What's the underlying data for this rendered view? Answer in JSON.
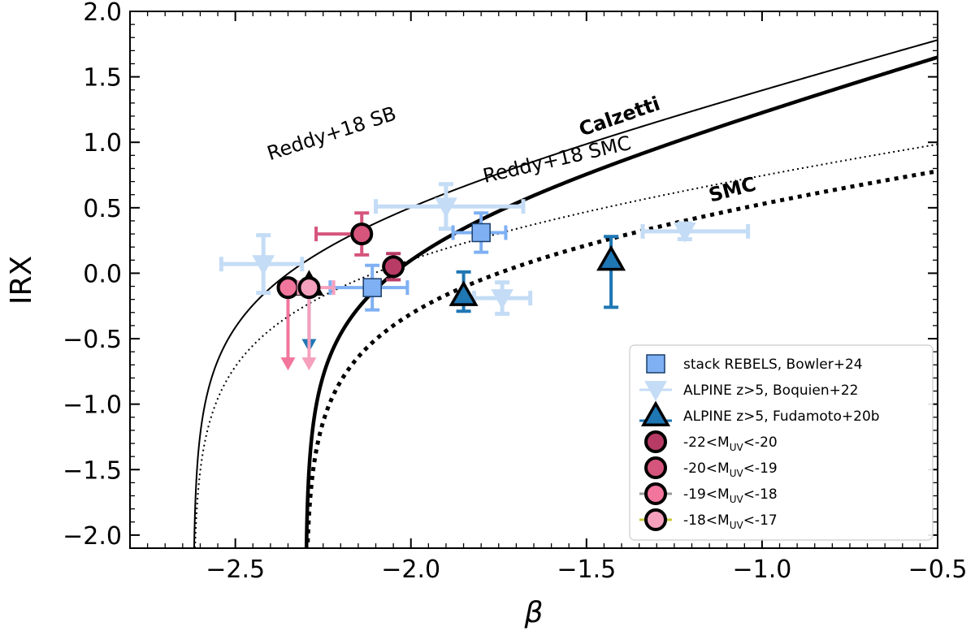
{
  "chart_data": {
    "type": "scatter",
    "xlabel": "β",
    "ylabel": "IRX",
    "xlim": [
      -2.8,
      -0.5
    ],
    "ylim": [
      -2.1,
      2.0
    ],
    "xticks": [
      {
        "value": -2.5,
        "label": "−2.5"
      },
      {
        "value": -2.0,
        "label": "−2.0"
      },
      {
        "value": -1.5,
        "label": "−1.5"
      },
      {
        "value": -1.0,
        "label": "−1.0"
      },
      {
        "value": -0.5,
        "label": "−0.5"
      }
    ],
    "yticks": [
      {
        "value": 2.0,
        "label": "2.0"
      },
      {
        "value": 1.5,
        "label": "1.5"
      },
      {
        "value": 1.0,
        "label": "1.0"
      },
      {
        "value": 0.5,
        "label": "0.5"
      },
      {
        "value": 0.0,
        "label": "0.0"
      },
      {
        "value": -0.5,
        "label": "−0.5"
      },
      {
        "value": -1.0,
        "label": "−1.0"
      },
      {
        "value": -1.5,
        "label": "−1.5"
      },
      {
        "value": -2.0,
        "label": "−2.0"
      }
    ],
    "curves": [
      {
        "name": "Reddy+18 SB",
        "label": "Reddy+18 SB",
        "beta0": -2.62,
        "slope": 1.84,
        "style": "solid",
        "label_bold": false,
        "label_at": [
          -2.22,
          1.02
        ],
        "label_angle": -18
      },
      {
        "name": "Calzetti",
        "label": "Calzetti",
        "beta0": -2.3,
        "slope": 1.99,
        "style": "solid-thick",
        "label_bold": true,
        "label_at": [
          -1.4,
          1.15
        ],
        "label_angle": -19
      },
      {
        "name": "Reddy+18 SMC",
        "label": "Reddy+18 SMC",
        "beta0": -2.62,
        "slope": 0.97,
        "style": "dotted",
        "label_bold": false,
        "label_at": [
          -1.58,
          0.82
        ],
        "label_angle": -13
      },
      {
        "name": "SMC",
        "label": "SMC",
        "beta0": -2.3,
        "slope": 0.91,
        "style": "dotted-thick",
        "label_bold": true,
        "label_at": [
          -1.08,
          0.59
        ],
        "label_angle": -15
      }
    ],
    "series": [
      {
        "name": "stack REBELS, Bowler+24",
        "marker": "square",
        "color": "#7fb0f3",
        "points": [
          {
            "x": -2.11,
            "y": -0.11,
            "xerr": [
              0.12,
              0.1
            ],
            "yerr": [
              0.17,
              0.17
            ]
          },
          {
            "x": -1.8,
            "y": 0.31,
            "xerr": [
              0.08,
              0.07
            ],
            "yerr": [
              0.15,
              0.15
            ]
          }
        ]
      },
      {
        "name": "ALPINE z>5, Boquien+22",
        "marker": "triangle-down",
        "color": "#c4dcf5",
        "points": [
          {
            "x": -2.42,
            "y": 0.07,
            "xerr": [
              0.12,
              0.11
            ],
            "yerr": [
              0.22,
              0.22
            ]
          },
          {
            "x": -1.9,
            "y": 0.51,
            "xerr": [
              0.2,
              0.22
            ],
            "yerr": [
              0.17,
              0.17
            ]
          },
          {
            "x": -1.74,
            "y": -0.19,
            "xerr": [
              0.08,
              0.08
            ],
            "yerr": [
              0.12,
              0.12
            ]
          },
          {
            "x": -1.22,
            "y": 0.32,
            "xerr": [
              0.12,
              0.18
            ],
            "yerr": [
              0.06,
              0.06
            ]
          }
        ]
      },
      {
        "name": "ALPINE z>5, Fudamoto+20b",
        "marker": "triangle-up",
        "color": "#1f77b4",
        "points": [
          {
            "x": -2.29,
            "y": -0.09,
            "xerr": [
              0,
              0
            ],
            "yerr": [
              0.0,
              0.0
            ],
            "upper_limit": true,
            "arrow_len": 0.5
          },
          {
            "x": -1.85,
            "y": -0.17,
            "xerr": [
              0,
              0
            ],
            "yerr": [
              0.12,
              0.18
            ]
          },
          {
            "x": -1.43,
            "y": 0.1,
            "xerr": [
              0,
              0
            ],
            "yerr": [
              0.36,
              0.18
            ]
          }
        ]
      },
      {
        "name": "-22<M_UV<-20",
        "marker": "circle",
        "color": "#b83b66",
        "points": [
          {
            "x": -2.05,
            "y": 0.05,
            "xerr": [
              0,
              0
            ],
            "yerr": [
              0.1,
              0.1
            ]
          }
        ]
      },
      {
        "name": "-20<M_UV<-19",
        "marker": "circle",
        "color": "#d6557d",
        "points": [
          {
            "x": -2.14,
            "y": 0.3,
            "xerr": [
              0.13,
              0.0
            ],
            "yerr": [
              0.16,
              0.16
            ]
          }
        ]
      },
      {
        "name": "-19<M_UV<-18",
        "marker": "circle",
        "color": "#f2759c",
        "points": [
          {
            "x": -2.35,
            "y": -0.11,
            "xerr": [
              0,
              0
            ],
            "yerr": [
              0,
              0
            ],
            "upper_limit": true,
            "arrow_len": 0.62
          }
        ]
      },
      {
        "name": "-18<M_UV<-17",
        "marker": "circle",
        "color": "#f5a0bd",
        "points": [
          {
            "x": -2.29,
            "y": -0.11,
            "xerr": [
              0.03,
              0.07
            ],
            "yerr": [
              0,
              0
            ],
            "upper_limit": true,
            "arrow_len": 0.62
          }
        ]
      }
    ],
    "legend": {
      "position": "lower-right",
      "entries": [
        {
          "label": "stack REBELS, Bowler+24",
          "marker": "square",
          "color": "#7fb0f3"
        },
        {
          "label": "ALPINE z>5, Boquien+22",
          "marker": "triangle-down",
          "color": "#c4dcf5"
        },
        {
          "label": "ALPINE z>5, Fudamoto+20b",
          "marker": "triangle-up",
          "color": "#1f77b4"
        },
        {
          "label": "-22<M",
          "sub": "UV",
          "tail": "<-20",
          "marker": "circle",
          "color": "#b83b66"
        },
        {
          "label": "-20<M",
          "sub": "UV",
          "tail": "<-19",
          "marker": "circle",
          "color": "#d6557d"
        },
        {
          "label": "-19<M",
          "sub": "UV",
          "tail": "<-18",
          "marker": "circle",
          "color": "#f2759c",
          "line_color": "#999999"
        },
        {
          "label": "-18<M",
          "sub": "UV",
          "tail": "<-17",
          "marker": "circle",
          "color": "#f5a0bd",
          "line_color": "#c8c83a"
        }
      ]
    }
  }
}
